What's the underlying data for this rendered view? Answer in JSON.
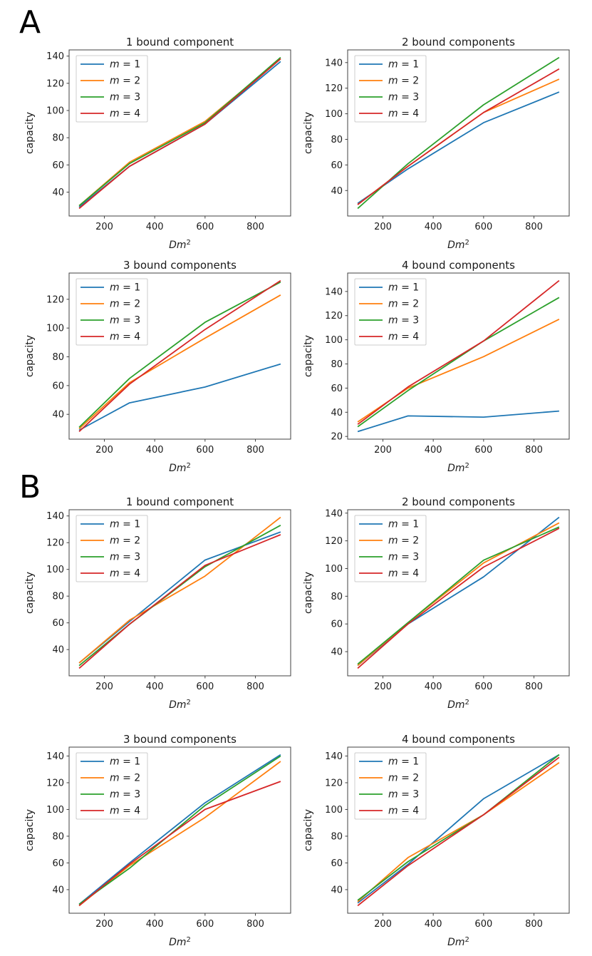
{
  "figure": {
    "background": "#ffffff"
  },
  "panels": [
    {
      "label": "A"
    },
    {
      "label": "B"
    }
  ],
  "legend": {
    "labels": [
      "m = 1",
      "m = 2",
      "m = 3",
      "m = 4"
    ],
    "position": "upper left"
  },
  "colors": {
    "series": [
      "#1f77b4",
      "#ff7f0e",
      "#2ca02c",
      "#d62728"
    ],
    "text": "#1a1a1a",
    "axis": "#404040",
    "legend_border": "#cccccc"
  },
  "chart_data": [
    {
      "panel": "A",
      "type": "line",
      "title": "1 bound component",
      "xlabel": "Dm^2",
      "ylabel": "capacity",
      "grid": false,
      "x": [
        100,
        300,
        600,
        900
      ],
      "xlim": [
        60,
        940
      ],
      "xticks": [
        200,
        400,
        600,
        800
      ],
      "yticks": [
        40,
        60,
        80,
        100,
        120,
        140
      ],
      "series": [
        {
          "name": "m = 1",
          "values": [
            29,
            59,
            90,
            136
          ]
        },
        {
          "name": "m = 2",
          "values": [
            30,
            62,
            92,
            138
          ]
        },
        {
          "name": "m = 3",
          "values": [
            30,
            61,
            91,
            139
          ]
        },
        {
          "name": "m = 4",
          "values": [
            28,
            59,
            90,
            138
          ]
        }
      ]
    },
    {
      "panel": "A",
      "type": "line",
      "title": "2 bound components",
      "xlabel": "Dm^2",
      "ylabel": "capacity",
      "grid": false,
      "x": [
        100,
        300,
        600,
        900
      ],
      "xlim": [
        60,
        940
      ],
      "xticks": [
        200,
        400,
        600,
        800
      ],
      "yticks": [
        40,
        60,
        80,
        100,
        120,
        140
      ],
      "series": [
        {
          "name": "m = 1",
          "values": [
            30,
            57,
            93,
            117
          ]
        },
        {
          "name": "m = 2",
          "values": [
            29,
            59,
            101,
            127
          ]
        },
        {
          "name": "m = 3",
          "values": [
            26,
            61,
            107,
            144
          ]
        },
        {
          "name": "m = 4",
          "values": [
            29,
            59,
            101,
            135
          ]
        }
      ]
    },
    {
      "panel": "A",
      "type": "line",
      "title": "3 bound components",
      "xlabel": "Dm^2",
      "ylabel": "capacity",
      "grid": false,
      "x": [
        100,
        300,
        600,
        900
      ],
      "xlim": [
        60,
        940
      ],
      "xticks": [
        200,
        400,
        600,
        800
      ],
      "yticks": [
        40,
        60,
        80,
        100,
        120
      ],
      "series": [
        {
          "name": "m = 1",
          "values": [
            29,
            48,
            59,
            75
          ]
        },
        {
          "name": "m = 2",
          "values": [
            30,
            62,
            93,
            123
          ]
        },
        {
          "name": "m = 3",
          "values": [
            31,
            65,
            104,
            132
          ]
        },
        {
          "name": "m = 4",
          "values": [
            28,
            61,
            99,
            133
          ]
        }
      ]
    },
    {
      "panel": "A",
      "type": "line",
      "title": "4 bound components",
      "xlabel": "Dm^2",
      "ylabel": "capacity",
      "grid": false,
      "x": [
        100,
        300,
        600,
        900
      ],
      "xlim": [
        60,
        940
      ],
      "xticks": [
        200,
        400,
        600,
        800
      ],
      "yticks": [
        20,
        40,
        60,
        80,
        100,
        120,
        140
      ],
      "series": [
        {
          "name": "m = 1",
          "values": [
            24,
            37,
            36,
            41
          ]
        },
        {
          "name": "m = 2",
          "values": [
            32,
            60,
            86,
            117
          ]
        },
        {
          "name": "m = 3",
          "values": [
            28,
            58,
            99,
            135
          ]
        },
        {
          "name": "m = 4",
          "values": [
            30,
            61,
            99,
            149
          ]
        }
      ]
    },
    {
      "panel": "B",
      "type": "line",
      "title": "1 bound component",
      "xlabel": "Dm^2",
      "ylabel": "capacity",
      "grid": false,
      "x": [
        100,
        300,
        600,
        900
      ],
      "xlim": [
        60,
        940
      ],
      "xticks": [
        200,
        400,
        600,
        800
      ],
      "yticks": [
        40,
        60,
        80,
        100,
        120,
        140
      ],
      "series": [
        {
          "name": "m = 1",
          "values": [
            30,
            61,
            107,
            128
          ]
        },
        {
          "name": "m = 2",
          "values": [
            30,
            62,
            95,
            139
          ]
        },
        {
          "name": "m = 3",
          "values": [
            28,
            59,
            102,
            133
          ]
        },
        {
          "name": "m = 4",
          "values": [
            26,
            59,
            103,
            126
          ]
        }
      ]
    },
    {
      "panel": "B",
      "type": "line",
      "title": "2 bound components",
      "xlabel": "Dm^2",
      "ylabel": "capacity",
      "grid": false,
      "x": [
        100,
        300,
        600,
        900
      ],
      "xlim": [
        60,
        940
      ],
      "xticks": [
        200,
        400,
        600,
        800
      ],
      "yticks": [
        40,
        60,
        80,
        100,
        120,
        140
      ],
      "series": [
        {
          "name": "m = 1",
          "values": [
            30,
            60,
            94,
            137
          ]
        },
        {
          "name": "m = 2",
          "values": [
            30,
            61,
            104,
            133
          ]
        },
        {
          "name": "m = 3",
          "values": [
            31,
            61,
            106,
            130
          ]
        },
        {
          "name": "m = 4",
          "values": [
            28,
            60,
            101,
            129
          ]
        }
      ]
    },
    {
      "panel": "B",
      "type": "line",
      "title": "3 bound components",
      "xlabel": "Dm^2",
      "ylabel": "capacity",
      "grid": false,
      "x": [
        100,
        300,
        600,
        900
      ],
      "xlim": [
        60,
        940
      ],
      "xticks": [
        200,
        400,
        600,
        800
      ],
      "yticks": [
        40,
        60,
        80,
        100,
        120,
        140
      ],
      "series": [
        {
          "name": "m = 1",
          "values": [
            29,
            60,
            105,
            141
          ]
        },
        {
          "name": "m = 2",
          "values": [
            28,
            58,
            94,
            136
          ]
        },
        {
          "name": "m = 3",
          "values": [
            29,
            56,
            103,
            140
          ]
        },
        {
          "name": "m = 4",
          "values": [
            28,
            59,
            100,
            121
          ]
        }
      ]
    },
    {
      "panel": "B",
      "type": "line",
      "title": "4 bound components",
      "xlabel": "Dm^2",
      "ylabel": "capacity",
      "grid": false,
      "x": [
        100,
        300,
        600,
        900
      ],
      "xlim": [
        60,
        940
      ],
      "xticks": [
        200,
        400,
        600,
        800
      ],
      "yticks": [
        40,
        60,
        80,
        100,
        120,
        140
      ],
      "series": [
        {
          "name": "m = 1",
          "values": [
            30,
            59,
            108,
            141
          ]
        },
        {
          "name": "m = 2",
          "values": [
            31,
            64,
            96,
            135
          ]
        },
        {
          "name": "m = 3",
          "values": [
            32,
            61,
            96,
            141
          ]
        },
        {
          "name": "m = 4",
          "values": [
            28,
            58,
            96,
            139
          ]
        }
      ]
    }
  ]
}
